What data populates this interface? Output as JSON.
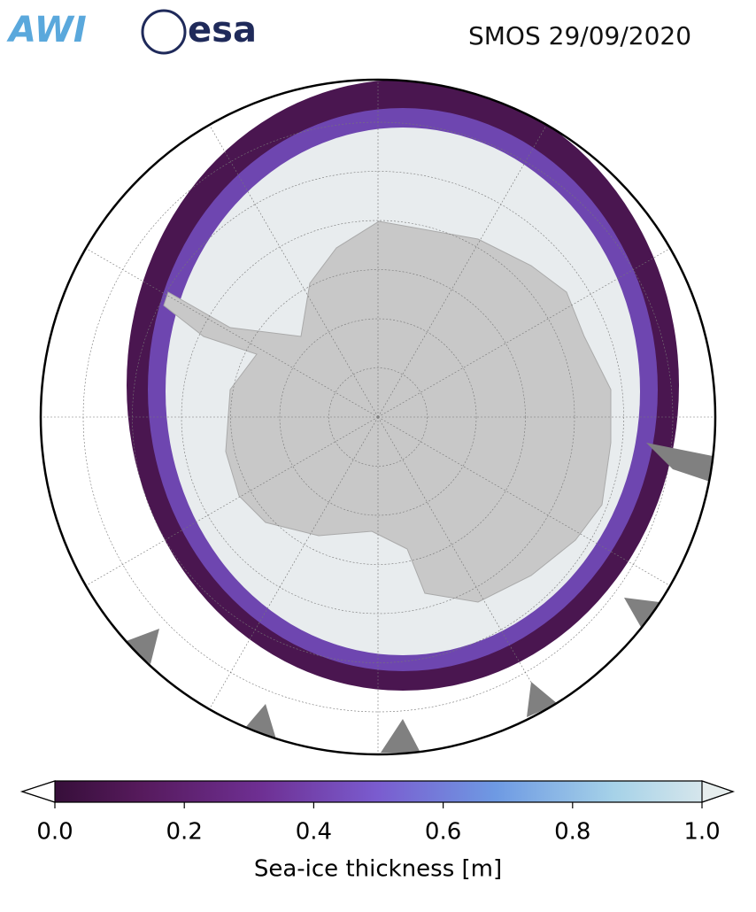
{
  "header": {
    "logos": [
      "AWI",
      "esa"
    ],
    "title": "SMOS 29/09/2020"
  },
  "colorbar": {
    "label": "Sea-ice thickness [m]",
    "range": [
      0,
      1
    ],
    "ticks": [
      {
        "value": 0,
        "label": "0.0"
      },
      0.2,
      0.4,
      0.6,
      0.8,
      {
        "value": 1,
        "label": "1.0"
      }
    ],
    "colors": [
      "#2a0a2c",
      "#561a5c",
      "#6e2f92",
      "#7a5ccf",
      "#6e9ae3",
      "#a6d2e8",
      "#e6eded"
    ]
  }
}
